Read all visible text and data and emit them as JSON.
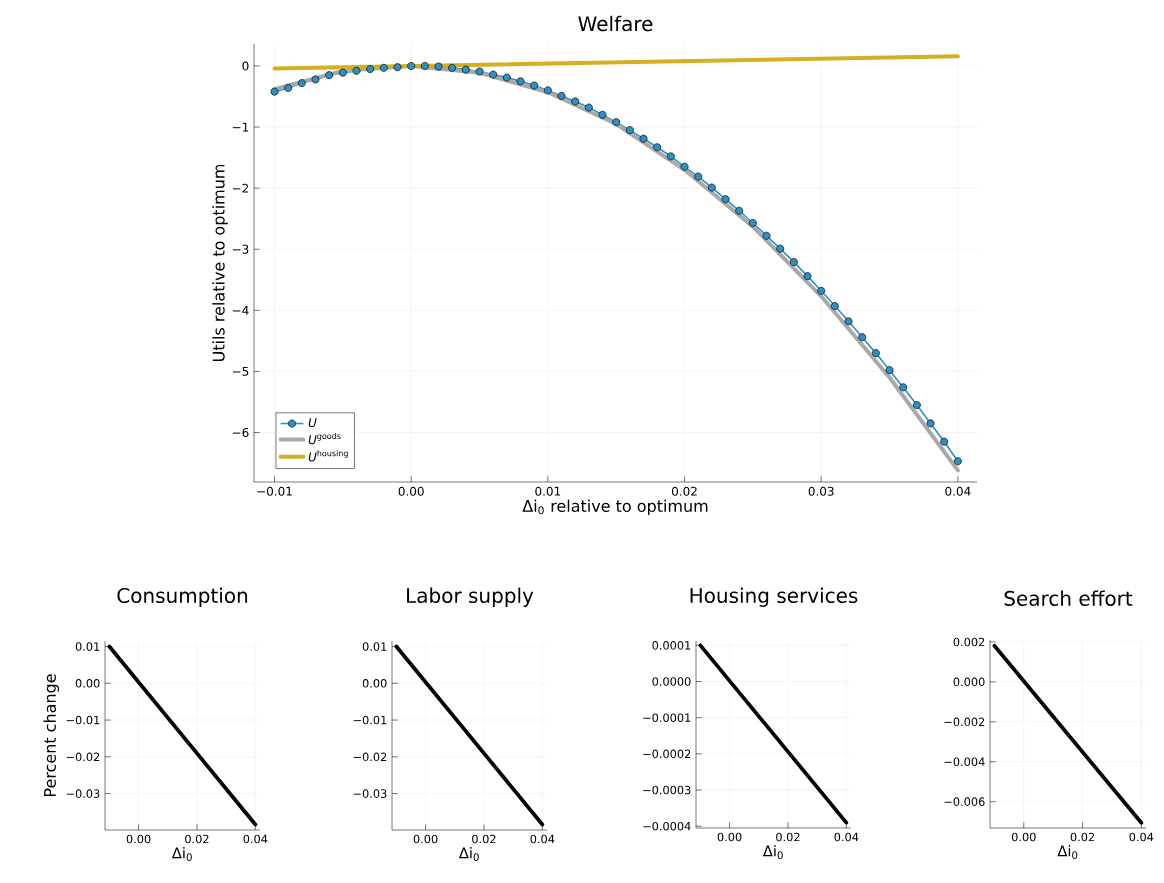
{
  "chart_data": [
    {
      "type": "line",
      "title": "Welfare",
      "xlabel": "Δi$_{0}$ relative to optimum",
      "ylabel": "Utils relative to optimum",
      "grid": true,
      "legend": "bottom left",
      "xlim": [
        -0.0115,
        0.0414
      ],
      "ylim": [
        -6.81,
        0.36
      ],
      "xticks": [
        {
          "value": -0.01,
          "label": "−0.01"
        },
        {
          "value": 0.0,
          "label": "0.00"
        },
        {
          "value": 0.01,
          "label": "0.01"
        },
        {
          "value": 0.02,
          "label": "0.02"
        },
        {
          "value": 0.03,
          "label": "0.03"
        },
        {
          "value": 0.04,
          "label": "0.04"
        }
      ],
      "yticks": [
        0,
        {
          "value": -1,
          "label": "−1"
        },
        {
          "value": -2,
          "label": "−2"
        },
        {
          "value": -3,
          "label": "−3"
        },
        {
          "value": -4,
          "label": "−4"
        },
        {
          "value": -5,
          "label": "−5"
        },
        {
          "value": -6,
          "label": "−6"
        }
      ],
      "series": [
        {
          "name": "*U*",
          "color": "#2e8fc4",
          "marker": "circle",
          "x": [
            -0.01,
            -0.009,
            -0.008,
            -0.007,
            -0.006,
            -0.005,
            -0.004,
            -0.003,
            -0.002,
            -0.001,
            0.0,
            0.001,
            0.002,
            0.003,
            0.004,
            0.005,
            0.006,
            0.007,
            0.008,
            0.009,
            0.01,
            0.011,
            0.012,
            0.013,
            0.014,
            0.015,
            0.016,
            0.017,
            0.018,
            0.019,
            0.02,
            0.021,
            0.022,
            0.023,
            0.024,
            0.025,
            0.026,
            0.027,
            0.028,
            0.029,
            0.03,
            0.031,
            0.032,
            0.033,
            0.034,
            0.035,
            0.036,
            0.037,
            0.038,
            0.039,
            0.04
          ],
          "values": [
            -0.42,
            -0.36,
            -0.28,
            -0.22,
            -0.15,
            -0.11,
            -0.08,
            -0.05,
            -0.03,
            -0.02,
            0.0,
            0.0,
            -0.01,
            -0.03,
            -0.06,
            -0.09,
            -0.14,
            -0.19,
            -0.25,
            -0.32,
            -0.4,
            -0.49,
            -0.58,
            -0.68,
            -0.8,
            -0.92,
            -1.05,
            -1.19,
            -1.33,
            -1.48,
            -1.65,
            -1.81,
            -1.99,
            -2.18,
            -2.37,
            -2.57,
            -2.78,
            -2.99,
            -3.21,
            -3.44,
            -3.68,
            -3.93,
            -4.18,
            -4.44,
            -4.7,
            -4.98,
            -5.26,
            -5.55,
            -5.85,
            -6.15,
            -6.47
          ]
        },
        {
          "name": "*U*$^{goods}$",
          "color": "#a9a9a9",
          "x": [
            -0.01,
            -0.005,
            0.0,
            0.005,
            0.01,
            0.015,
            0.02,
            0.025,
            0.03,
            0.035,
            0.04
          ],
          "values": [
            -0.38,
            -0.08,
            0.0,
            -0.11,
            -0.43,
            -0.95,
            -1.7,
            -2.63,
            -3.77,
            -5.1,
            -6.62
          ]
        },
        {
          "name": "*U*$^{housing}$",
          "color": "#d4af20",
          "x": [
            -0.01,
            0.04
          ],
          "values": [
            -0.04,
            0.16
          ]
        }
      ]
    },
    {
      "type": "line",
      "title": "Consumption",
      "xlabel": "Δi$_{0}$",
      "ylabel": "Percent change",
      "grid": true,
      "xlim": [
        -0.0115,
        0.0416
      ],
      "ylim": [
        -0.0399,
        0.0115
      ],
      "xticks": [
        {
          "value": 0.0,
          "label": "0.00"
        },
        {
          "value": 0.02,
          "label": "0.02"
        },
        {
          "value": 0.04,
          "label": "0.04"
        }
      ],
      "yticks": [
        0.01,
        {
          "value": 0.0,
          "label": "0.00"
        },
        {
          "value": -0.01,
          "label": "−0.01"
        },
        {
          "value": -0.02,
          "label": "−0.02"
        },
        {
          "value": -0.03,
          "label": "−0.03"
        }
      ],
      "series": [
        {
          "color": "#000000",
          "x": [
            -0.01,
            0.04
          ],
          "values": [
            0.01,
            -0.0384
          ]
        }
      ]
    },
    {
      "type": "line",
      "title": "Labor supply",
      "xlabel": "Δi$_{0}$",
      "grid": true,
      "xlim": [
        -0.0115,
        0.0416
      ],
      "ylim": [
        -0.0399,
        0.0115
      ],
      "xticks": [
        {
          "value": 0.0,
          "label": "0.00"
        },
        {
          "value": 0.02,
          "label": "0.02"
        },
        {
          "value": 0.04,
          "label": "0.04"
        }
      ],
      "yticks": [
        0.01,
        {
          "value": 0.0,
          "label": "0.00"
        },
        {
          "value": -0.01,
          "label": "−0.01"
        },
        {
          "value": -0.02,
          "label": "−0.02"
        },
        {
          "value": -0.03,
          "label": "−0.03"
        }
      ],
      "series": [
        {
          "color": "#000000",
          "x": [
            -0.01,
            0.04
          ],
          "values": [
            0.01,
            -0.0384
          ]
        }
      ]
    },
    {
      "type": "line",
      "title": "Housing services",
      "xlabel": "Δi$_{0}$",
      "grid": true,
      "xlim": [
        -0.0115,
        0.0416
      ],
      "ylim": [
        -0.000405,
        0.000112
      ],
      "xticks": [
        {
          "value": 0.0,
          "label": "0.00"
        },
        {
          "value": 0.02,
          "label": "0.02"
        },
        {
          "value": 0.04,
          "label": "0.04"
        }
      ],
      "yticks": [
        0.0001,
        {
          "value": 0.0,
          "label": "0.0000"
        },
        {
          "value": -0.0001,
          "label": "−0.0001"
        },
        {
          "value": -0.0002,
          "label": "−0.0002"
        },
        {
          "value": -0.0003,
          "label": "−0.0003"
        },
        {
          "value": -0.0004,
          "label": "−0.0004"
        }
      ],
      "series": [
        {
          "color": "#000000",
          "x": [
            -0.01,
            0.04
          ],
          "values": [
            0.0001,
            -0.00039
          ]
        }
      ]
    },
    {
      "type": "line",
      "title": "Search effort",
      "xlabel": "Δi$_{0}$",
      "grid": true,
      "xlim": [
        -0.0115,
        0.0416
      ],
      "ylim": [
        -0.00732,
        0.0021
      ],
      "xticks": [
        {
          "value": 0.0,
          "label": "0.00"
        },
        {
          "value": 0.02,
          "label": "0.02"
        },
        {
          "value": 0.04,
          "label": "0.04"
        }
      ],
      "yticks": [
        0.002,
        {
          "value": 0.0,
          "label": "0.000"
        },
        {
          "value": -0.002,
          "label": "−0.002"
        },
        {
          "value": -0.004,
          "label": "−0.004"
        },
        {
          "value": -0.006,
          "label": "−0.006"
        }
      ],
      "series": [
        {
          "color": "#000000",
          "x": [
            -0.01,
            0.04
          ],
          "values": [
            0.00181,
            -0.00706
          ]
        }
      ]
    }
  ]
}
